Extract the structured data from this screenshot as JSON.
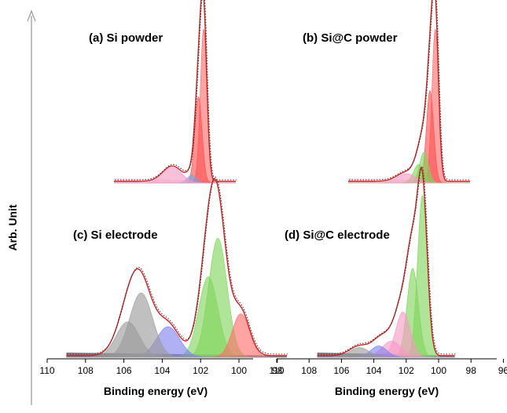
{
  "ylabel": "Arb. Unit",
  "colors": {
    "envelope": "#cc2222",
    "data_dots": "#333333",
    "Si0": "#ff6b6b",
    "Si0_b": "#ff4d4d",
    "suboxide_green": "#7fd35a",
    "suboxide_pink": "#f59ac4",
    "suboxide_blue": "#8080ee",
    "SiO2_gray": "#9a9a9a",
    "background": "#6a6a7a"
  },
  "chart_data": [
    {
      "type": "area",
      "panel": "a",
      "title": "(a) Si powder",
      "xlabel": "",
      "xlim": [
        110,
        96
      ],
      "components": [
        {
          "name": "c1",
          "center": 99.7,
          "height": 1.0,
          "sigma": 0.38,
          "color": "#ff6b6b"
        },
        {
          "name": "c2",
          "center": 100.3,
          "height": 0.56,
          "sigma": 0.42,
          "color": "#ff4d4d"
        },
        {
          "name": "c3",
          "center": 101.1,
          "height": 0.05,
          "sigma": 0.5,
          "color": "#6aa8e8"
        },
        {
          "name": "c4",
          "center": 103.3,
          "height": 0.1,
          "sigma": 1.1,
          "color": "#f59ac4"
        }
      ]
    },
    {
      "type": "area",
      "panel": "b",
      "title": "(b) Si@C powder",
      "xlabel": "",
      "xlim": [
        110,
        96
      ],
      "components": [
        {
          "name": "c1",
          "center": 100.0,
          "height": 1.0,
          "sigma": 0.38,
          "color": "#ff6b6b"
        },
        {
          "name": "c2",
          "center": 100.6,
          "height": 0.6,
          "sigma": 0.42,
          "color": "#ff4d4d"
        },
        {
          "name": "c3",
          "center": 101.3,
          "height": 0.2,
          "sigma": 0.5,
          "color": "#7fd35a"
        },
        {
          "name": "c4",
          "center": 101.9,
          "height": 0.12,
          "sigma": 0.6,
          "color": "#7fd35a"
        },
        {
          "name": "c5",
          "center": 103.3,
          "height": 0.06,
          "sigma": 1.1,
          "color": "#f59ac4"
        }
      ]
    },
    {
      "type": "area",
      "panel": "c",
      "title": "(c) Si electrode",
      "xlabel": "Binding energy (eV)",
      "xlim": [
        110,
        97
      ],
      "xticks": [
        110,
        108,
        106,
        104,
        102,
        100,
        98
      ],
      "components": [
        {
          "name": "c1",
          "center": 101.1,
          "height": 0.74,
          "sigma": 0.48,
          "color": "#7fd35a"
        },
        {
          "name": "c2",
          "center": 101.6,
          "height": 0.5,
          "sigma": 0.5,
          "color": "#7fd35a"
        },
        {
          "name": "c3",
          "center": 99.9,
          "height": 0.27,
          "sigma": 0.45,
          "color": "#ff6b6b"
        },
        {
          "name": "c4",
          "center": 103.7,
          "height": 0.19,
          "sigma": 0.6,
          "color": "#8080ee"
        },
        {
          "name": "c5",
          "center": 105.1,
          "height": 0.4,
          "sigma": 0.6,
          "color": "#9a9a9a"
        },
        {
          "name": "c6",
          "center": 105.8,
          "height": 0.22,
          "sigma": 0.6,
          "color": "#9a9a9a"
        }
      ]
    },
    {
      "type": "area",
      "panel": "d",
      "title": "(d) Si@C electrode",
      "xlabel": "Binding energy (eV)",
      "xlim": [
        110,
        96
      ],
      "xticks": [
        110,
        108,
        106,
        104,
        102,
        100,
        98,
        96
      ],
      "components": [
        {
          "name": "c1",
          "center": 101.0,
          "height": 1.0,
          "sigma": 0.3,
          "color": "#7fd35a"
        },
        {
          "name": "c2",
          "center": 101.6,
          "height": 0.55,
          "sigma": 0.35,
          "color": "#7fd35a"
        },
        {
          "name": "c3",
          "center": 102.2,
          "height": 0.28,
          "sigma": 0.45,
          "color": "#f59ac4"
        },
        {
          "name": "c4",
          "center": 102.9,
          "height": 0.1,
          "sigma": 0.6,
          "color": "#f59ac4"
        },
        {
          "name": "c5",
          "center": 103.7,
          "height": 0.07,
          "sigma": 0.5,
          "color": "#8080ee"
        },
        {
          "name": "c6",
          "center": 104.9,
          "height": 0.06,
          "sigma": 0.6,
          "color": "#9a9a9a"
        }
      ]
    }
  ]
}
